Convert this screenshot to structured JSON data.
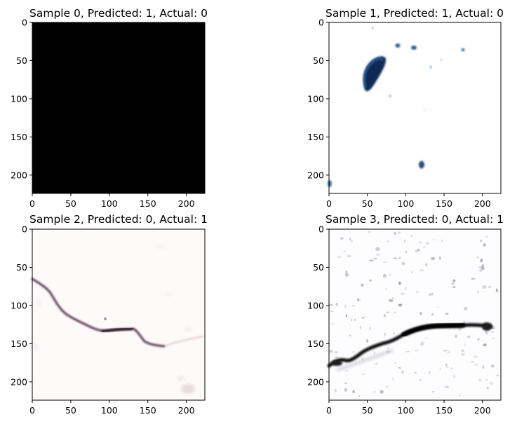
{
  "chart_data": [
    {
      "type": "image",
      "title": "Sample 0, Predicted: 1, Actual: 0",
      "xticks": [
        0,
        50,
        100,
        150,
        200
      ],
      "yticks": [
        0,
        50,
        100,
        150,
        200
      ],
      "xlim": [
        0,
        224
      ],
      "ylim": [
        224,
        0
      ],
      "content": "solid-black",
      "background": "#000000"
    },
    {
      "type": "image",
      "title": "Sample 1, Predicted: 1, Actual: 0",
      "xticks": [
        0,
        50,
        100,
        150,
        200
      ],
      "yticks": [
        0,
        50,
        100,
        150,
        200
      ],
      "xlim": [
        0,
        224
      ],
      "ylim": [
        224,
        0
      ],
      "content": "blue-spots",
      "background": "#ffffff"
    },
    {
      "type": "image",
      "title": "Sample 2, Predicted: 0, Actual: 1",
      "xticks": [
        0,
        50,
        100,
        150,
        200
      ],
      "yticks": [
        0,
        50,
        100,
        150,
        200
      ],
      "xlim": [
        0,
        224
      ],
      "ylim": [
        224,
        0
      ],
      "content": "thin-crack",
      "background": "#fffafa"
    },
    {
      "type": "image",
      "title": "Sample 3, Predicted: 0, Actual: 1",
      "xticks": [
        0,
        50,
        100,
        150,
        200
      ],
      "yticks": [
        0,
        50,
        100,
        150,
        200
      ],
      "xlim": [
        0,
        224
      ],
      "ylim": [
        224,
        0
      ],
      "content": "thick-crack",
      "background": "#fdfdff"
    }
  ]
}
